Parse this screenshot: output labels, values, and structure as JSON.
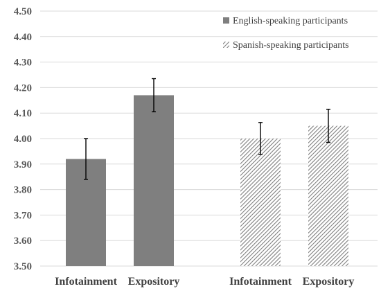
{
  "chart_data": {
    "type": "bar",
    "title": "",
    "xlabel": "",
    "ylabel": "",
    "ylim": [
      3.5,
      4.5
    ],
    "yticks": [
      "3.50",
      "3.60",
      "3.70",
      "3.80",
      "3.90",
      "4.00",
      "4.10",
      "4.20",
      "4.30",
      "4.40",
      "4.50"
    ],
    "categories": [
      "Infotainment",
      "Expository"
    ],
    "grid": true,
    "legend_position": "top-right",
    "series": [
      {
        "name": "English-speaking participants",
        "style": "solid",
        "color": "#7f7f7f",
        "values": [
          3.92,
          4.17
        ],
        "error_low": [
          3.84,
          4.105
        ],
        "error_high": [
          4.0,
          4.235
        ]
      },
      {
        "name": "Spanish-speaking participants",
        "style": "hatched",
        "color": "#7f7f7f",
        "values": [
          4.0,
          4.05
        ],
        "error_low": [
          3.938,
          3.985
        ],
        "error_high": [
          4.063,
          4.115
        ]
      }
    ]
  }
}
